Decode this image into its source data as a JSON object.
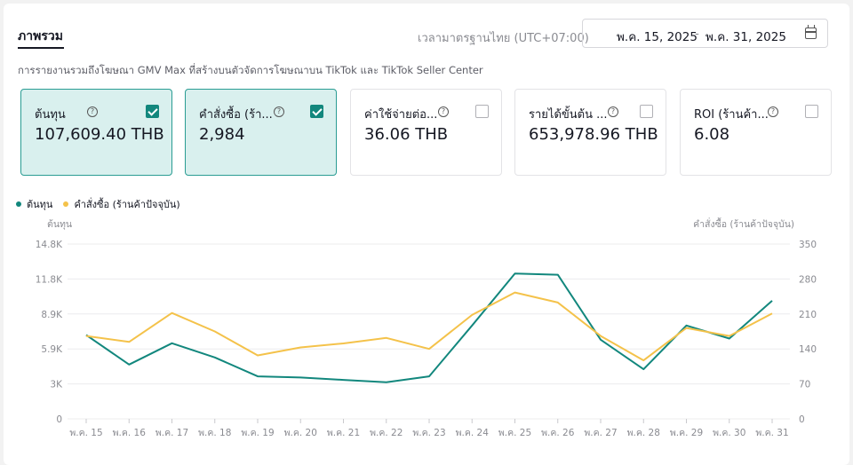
{
  "header": {
    "tab_label": "ภาพรวม",
    "timezone": "เวลามาตรฐานไทย (UTC+07:00)",
    "date_start": "พ.ค. 15, 2025",
    "date_separator": "-",
    "date_end": "พ.ค. 31, 2025",
    "calendar_icon": "calendar-icon"
  },
  "subtitle": "การรายงานรวมถึงโฆษณา GMV Max ที่สร้างบนตัวจัดการโฆษณาบน TikTok และ TikTok Seller Center",
  "cards": [
    {
      "label": "ต้นทุน",
      "value": "107,609.40 THB",
      "checked": true
    },
    {
      "label": "คำสั่งซื้อ (ร้า...",
      "value": "2,984",
      "checked": true
    },
    {
      "label": "ค่าใช้จ่ายต่อ...",
      "value": "36.06 THB",
      "checked": false
    },
    {
      "label": "รายได้ขั้นต้น ...",
      "value": "653,978.96 THB",
      "checked": false
    },
    {
      "label": "ROI (ร้านค้า...",
      "value": "6.08",
      "checked": false
    }
  ],
  "colors": {
    "cost": "#12877d",
    "orders": "#f4c24a",
    "accent": "#12877d"
  },
  "chart_data": {
    "type": "line",
    "x": [
      "พ.ค. 15",
      "พ.ค. 16",
      "พ.ค. 17",
      "พ.ค. 18",
      "พ.ค. 19",
      "พ.ค. 20",
      "พ.ค. 21",
      "พ.ค. 22",
      "พ.ค. 23",
      "พ.ค. 24",
      "พ.ค. 25",
      "พ.ค. 26",
      "พ.ค. 27",
      "พ.ค. 28",
      "พ.ค. 29",
      "พ.ค. 30",
      "พ.ค. 31"
    ],
    "ylabel_left": "ต้นทุน",
    "ylabel_right": "คำสั่งซื้อ (ร้านค้าปัจจุบัน)",
    "yticks_left": [
      "0",
      "3K",
      "5.9K",
      "8.9K",
      "11.8K",
      "14.8K"
    ],
    "yticks_right": [
      "0",
      "70",
      "140",
      "210",
      "280",
      "350"
    ],
    "ylim_left": [
      0,
      14800
    ],
    "ylim_right": [
      0,
      350
    ],
    "grid": true,
    "legend_position": "top-left",
    "series": [
      {
        "name": "ต้นทุน",
        "axis": "left",
        "values": [
          7100,
          4600,
          6400,
          5200,
          3600,
          3500,
          3300,
          3100,
          3600,
          7900,
          12300,
          12200,
          6700,
          4200,
          7900,
          6800,
          10000
        ]
      },
      {
        "name": "คำสั่งซื้อ (ร้านค้าปัจจุบัน)",
        "axis": "right",
        "values": [
          166,
          154,
          212,
          175,
          127,
          143,
          151,
          162,
          140,
          208,
          253,
          233,
          166,
          117,
          182,
          166,
          211
        ]
      }
    ]
  }
}
